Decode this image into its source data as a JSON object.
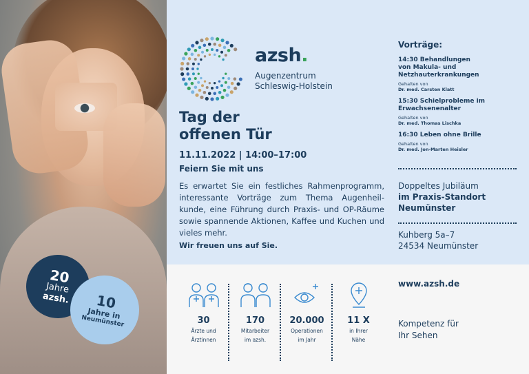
{
  "colors": {
    "navy": "#1d3d5c",
    "light_blue": "#a9cdec",
    "bg_top": "#dbe8f7",
    "bg_bottom": "#f6f6f6",
    "logo_green": "#3aa35b"
  },
  "badge_20": {
    "number": "20",
    "line1": "Jahre",
    "line2": "azsh."
  },
  "badge_10": {
    "number": "10",
    "line1": "Jahre in",
    "line2": "Neumünster"
  },
  "logo": {
    "name": "azsh",
    "dot": ".",
    "sub1": "Augenzentrum",
    "sub2": "Schleswig-Holstein"
  },
  "headline": {
    "line1": "Tag der",
    "line2": "offenen Tür"
  },
  "dateline": "11.11.2022 | 14:00–17:00",
  "subheading": "Feiern Sie mit uns",
  "body": "Es erwartet Sie ein festliches Rahmenprogramm, interessante Vorträge zum Thema Augenheil-kunde, eine Führung durch Praxis- und OP-Räume sowie spannende Aktionen, Kaffee und Kuchen und vieles mehr.",
  "closing": "Wir freuen uns auf Sie.",
  "vortraege": {
    "heading": "Vorträge:",
    "talks": [
      {
        "title_1": "14:30 Behandlungen",
        "title_2": "von Makula- und",
        "title_3": "Netzhauterkrankungen",
        "given_by": "Gehalten von",
        "speaker": "Dr. med. Carsten Klatt"
      },
      {
        "title_1": "15:30  Schielprobleme im",
        "title_2": "Erwachsenenalter",
        "title_3": "",
        "given_by": "Gehalten von",
        "speaker": "Dr. med. Thomas Lischka"
      },
      {
        "title_1": "16:30 Leben ohne Brille",
        "title_2": "",
        "title_3": "",
        "given_by": "Gehalten von",
        "speaker": "Dr. med. Jon-Marten Heisler"
      }
    ]
  },
  "jubilaeum": {
    "line1": "Doppeltes Jubiläum",
    "line2": "im Praxis-Standort",
    "line3": "Neumünster"
  },
  "address": {
    "street": "Kuhberg 5a–7",
    "city": "24534 Neumünster"
  },
  "stats": [
    {
      "icon": "doctors-icon",
      "number": "30",
      "label1": "Ärzte und",
      "label2": "Ärztinnen"
    },
    {
      "icon": "staff-icon",
      "number": "170",
      "label1": "Mitarbeiter",
      "label2": "im azsh."
    },
    {
      "icon": "eye-plus-icon",
      "number": "20.000",
      "label1": "Operationen",
      "label2": "im Jahr"
    },
    {
      "icon": "location-pin-icon",
      "number": "11 X",
      "label1": "in Ihrer",
      "label2": "Nähe"
    }
  ],
  "website": "www.azsh.de",
  "tagline": {
    "line1": "Kompetenz für",
    "line2": "Ihr Sehen"
  }
}
